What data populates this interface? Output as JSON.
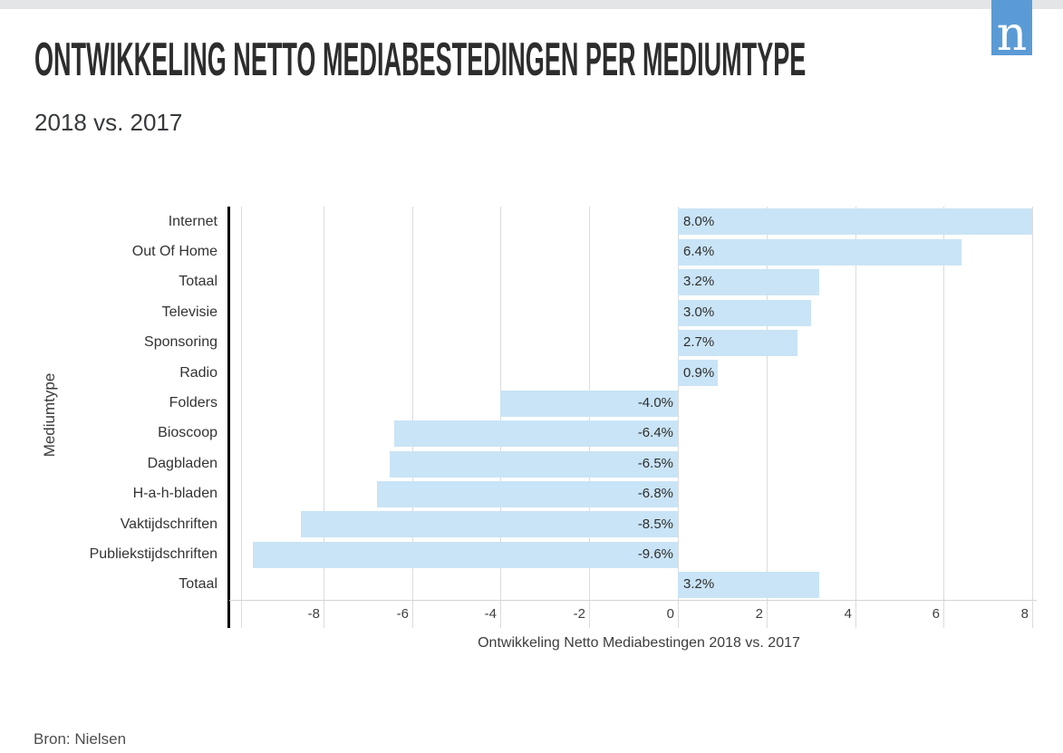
{
  "page": {
    "title": "ONTWIKKELING NETTO MEDIABESTEDINGEN PER MEDIUMTYPE",
    "subtitle": "2018 vs. 2017",
    "source": "Bron: Nielsen",
    "logo_letter": "n",
    "logo_color": "#5b9bd5"
  },
  "chart_data": {
    "type": "bar",
    "orientation": "horizontal",
    "title": "ONTWIKKELING NETTO MEDIABESTEDINGEN PER MEDIUMTYPE",
    "subtitle": "2018 vs. 2017",
    "categories": [
      "Internet",
      "Out Of Home",
      "Totaal",
      "Televisie",
      "Sponsoring",
      "Radio",
      "Folders",
      "Bioscoop",
      "Dagbladen",
      "H-a-h-bladen",
      "Vaktijdschriften",
      "Publiekstijdschriften",
      "Totaal"
    ],
    "values": [
      8.0,
      6.4,
      3.2,
      3.0,
      2.7,
      0.9,
      -4.0,
      -6.4,
      -6.5,
      -6.8,
      -8.5,
      -9.6,
      3.2
    ],
    "value_labels": [
      "8.0%",
      "6.4%",
      "3.2%",
      "3.0%",
      "2.7%",
      "0.9%",
      "-4.0%",
      "-6.4%",
      "-6.5%",
      "-6.8%",
      "-8.5%",
      "-9.6%",
      "3.2%"
    ],
    "xlabel": "Ontwikkeling Netto Mediabestingen 2018 vs. 2017",
    "ylabel": "Mediumtype",
    "xticks": [
      -8,
      -6,
      -4,
      -2,
      0,
      2,
      4,
      6,
      8
    ],
    "xlim": [
      -9.86,
      8.1
    ],
    "bar_color": "#c9e4f6",
    "grid": true,
    "legend": false
  }
}
